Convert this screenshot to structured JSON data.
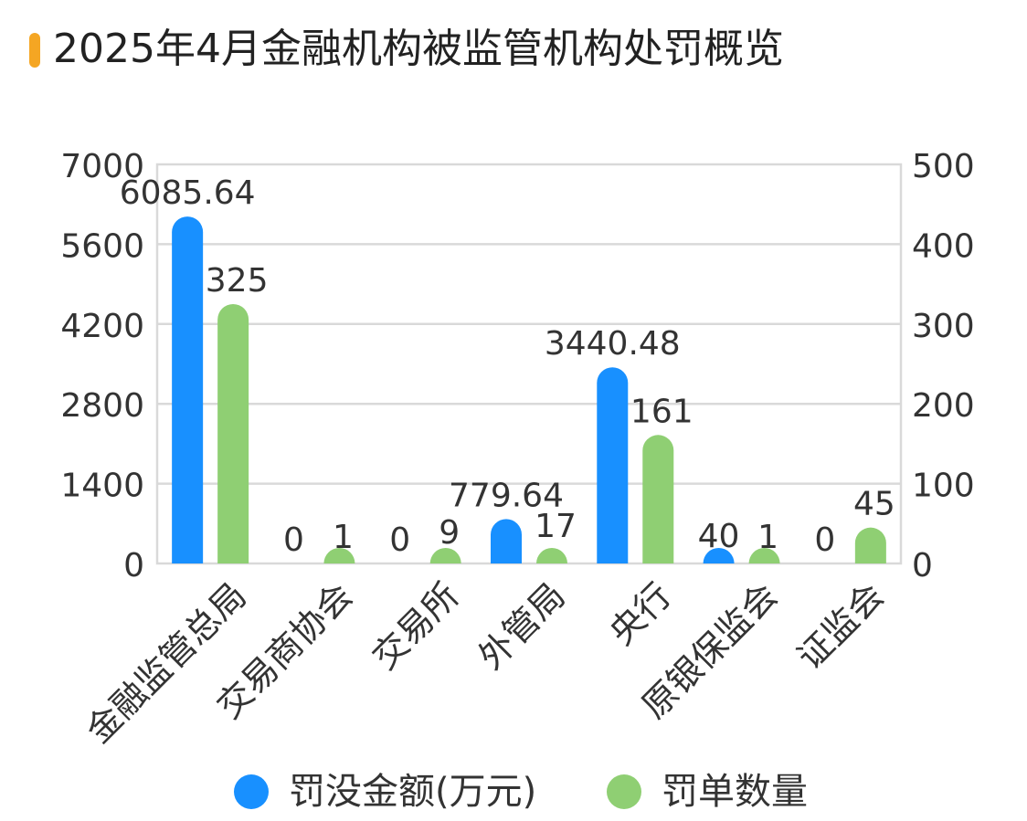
{
  "title": "2025年4月金融机构被监管机构处罚概览",
  "colors": {
    "accent": "#f5a623",
    "series1": "#1890ff",
    "series2": "#8fcf73",
    "grid": "#d9d9d9"
  },
  "chart_data": {
    "type": "bar",
    "title": "2025年4月金融机构被监管机构处罚概览",
    "categories": [
      "金融监管总局",
      "交易商协会",
      "交易所",
      "外管局",
      "央行",
      "原银保监会",
      "证监会"
    ],
    "series": [
      {
        "name": "罚没金额(万元)",
        "axis": "left",
        "color": "#1890ff",
        "values": [
          6085.64,
          0,
          0,
          779.64,
          3440.48,
          40,
          0
        ]
      },
      {
        "name": "罚单数量",
        "axis": "right",
        "color": "#8fcf73",
        "values": [
          325,
          1,
          9,
          17,
          161,
          1,
          45
        ]
      }
    ],
    "y_left": {
      "range": [
        0,
        7000
      ],
      "ticks": [
        "0",
        "1400",
        "2800",
        "4200",
        "5600",
        "7000"
      ]
    },
    "y_right": {
      "range": [
        0,
        500
      ],
      "ticks": [
        "0",
        "100",
        "200",
        "300",
        "400",
        "500"
      ]
    },
    "data_labels": {
      "series1": [
        "6085.64",
        "0",
        "0",
        "779.64",
        "3440.48",
        "40",
        "0"
      ],
      "series2": [
        "325",
        "1",
        "9",
        "17",
        "161",
        "1",
        "45"
      ]
    },
    "grid": true,
    "legend_position": "bottom"
  },
  "legend": [
    {
      "label": "罚没金额(万元)",
      "color": "#1890ff"
    },
    {
      "label": "罚单数量",
      "color": "#8fcf73"
    }
  ]
}
